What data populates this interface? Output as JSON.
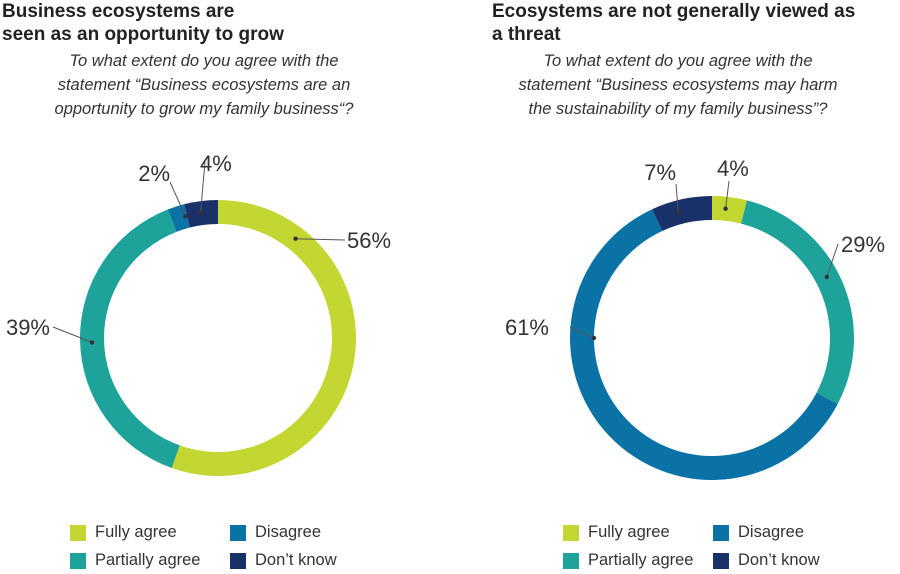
{
  "colors": {
    "fully_agree": "#C3D631",
    "partially_agree": "#1DA39A",
    "disagree": "#0B72A6",
    "dont_know": "#1A3068",
    "leader": "#555555"
  },
  "legend": {
    "fully_agree": "Fully agree",
    "disagree": "Disagree",
    "partially_agree": "Partially agree",
    "dont_know": "Don’t know"
  },
  "chart_data": [
    {
      "type": "donut",
      "title_lines": [
        "Business ecosystems are",
        "seen as an opportunity to grow"
      ],
      "question_lines": [
        "To what extent do you agree with the",
        "statement “Business ecosystems are an",
        "opportunity to grow my family business“?"
      ],
      "categories": [
        "Fully agree",
        "Partially agree",
        "Disagree",
        "Don’t know"
      ],
      "values": [
        56,
        39,
        2,
        4
      ],
      "labels": [
        "56%",
        "39%",
        "2%",
        "4%"
      ]
    },
    {
      "type": "donut",
      "title_lines": [
        "Ecosystems are not generally viewed as",
        "a threat"
      ],
      "question_lines": [
        "To what extent do you agree with the",
        "statement “Business ecosystems may harm",
        "the sustainability of my family business”?"
      ],
      "categories": [
        "Fully agree",
        "Partially agree",
        "Disagree",
        "Don’t know"
      ],
      "values": [
        4,
        29,
        61,
        7
      ],
      "labels": [
        "4%",
        "29%",
        "61%",
        "7%"
      ]
    }
  ]
}
